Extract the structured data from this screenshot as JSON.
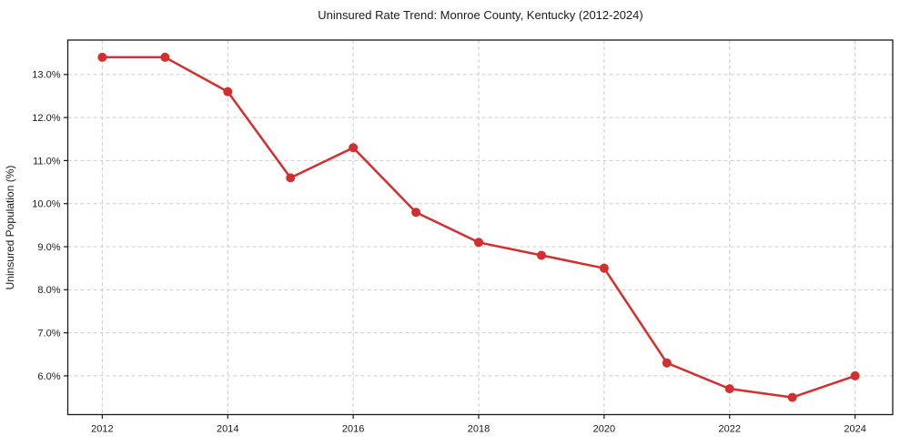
{
  "page": {
    "background": "#ffffff"
  },
  "chart_data": {
    "type": "line",
    "title": "Uninsured Rate Trend: Monroe County, Kentucky (2012-2024)",
    "xlabel": "",
    "ylabel": "Uninsured Population (%)",
    "x": [
      2012,
      2013,
      2014,
      2015,
      2016,
      2017,
      2018,
      2019,
      2020,
      2021,
      2022,
      2023,
      2024
    ],
    "values": [
      13.4,
      13.4,
      12.6,
      10.6,
      11.3,
      9.8,
      9.1,
      8.8,
      8.5,
      6.3,
      5.7,
      5.5,
      6.0
    ],
    "x_ticks": {
      "values": [
        2012,
        2014,
        2016,
        2018,
        2020,
        2022,
        2024
      ],
      "labels": [
        "2012",
        "2014",
        "2016",
        "2018",
        "2020",
        "2022",
        "2024"
      ]
    },
    "y_ticks": {
      "values": [
        6.0,
        7.0,
        8.0,
        9.0,
        10.0,
        11.0,
        12.0,
        13.0
      ],
      "labels": [
        "6.0%",
        "7.0%",
        "8.0%",
        "9.0%",
        "10.0%",
        "11.0%",
        "12.0%",
        "13.0%"
      ]
    },
    "xlim": [
      2011.45,
      2024.6
    ],
    "ylim": [
      5.1,
      13.8
    ],
    "grid": true,
    "grid_style": "dashed",
    "legend_position": "none",
    "line_color": "#d32f2f",
    "marker": "circle",
    "grid_color": "#cccccc",
    "axis_color": "#1a1a1a",
    "text_color": "#1a1a1a"
  }
}
